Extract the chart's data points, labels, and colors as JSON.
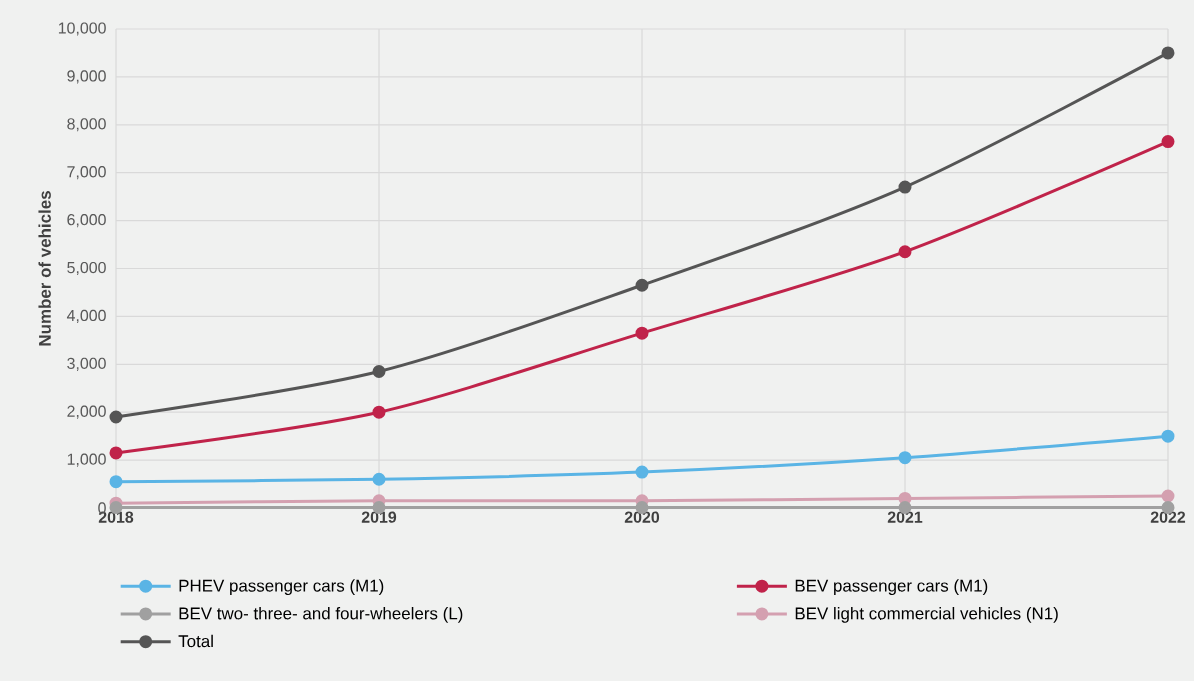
{
  "chart_data": {
    "type": "line",
    "ylabel": "Number of vehicles",
    "x": [
      2018,
      2019,
      2020,
      2021,
      2022
    ],
    "series": [
      {
        "name": "PHEV passenger cars (M1)",
        "color": "#5ab4e5",
        "values": [
          550,
          600,
          750,
          1050,
          1500
        ]
      },
      {
        "name": "BEV passenger cars (M1)",
        "color": "#c0234a",
        "values": [
          1150,
          2000,
          3650,
          5350,
          7650
        ]
      },
      {
        "name": "BEV two- three- and four-wheelers (L)",
        "color": "#a0a0a0",
        "values": [
          10,
          10,
          10,
          10,
          10
        ]
      },
      {
        "name": "BEV light commercial vehicles (N1)",
        "color": "#d4a0b0",
        "values": [
          100,
          150,
          150,
          200,
          250
        ]
      },
      {
        "name": "Total",
        "color": "#555555",
        "values": [
          1900,
          2850,
          4650,
          6700,
          9500
        ]
      }
    ],
    "xlim": [
      2018,
      2022
    ],
    "xticks": [
      2018,
      2019,
      2020,
      2021,
      2022
    ],
    "ylim": [
      0,
      10000
    ],
    "yticks": [
      0,
      {
        "value": 1000,
        "label": "1,000"
      },
      {
        "value": 2000,
        "label": "2,000"
      },
      {
        "value": 3000,
        "label": "3,000"
      },
      {
        "value": 4000,
        "label": "4,000"
      },
      {
        "value": 5000,
        "label": "5,000"
      },
      {
        "value": 6000,
        "label": "6,000"
      },
      {
        "value": 7000,
        "label": "7,000"
      },
      {
        "value": 8000,
        "label": "8,000"
      },
      {
        "value": 9000,
        "label": "9,000"
      },
      {
        "value": 10000,
        "label": "10,000"
      }
    ],
    "grid": true,
    "legend": "bottom",
    "marker": "circle",
    "line_style": "solid"
  }
}
